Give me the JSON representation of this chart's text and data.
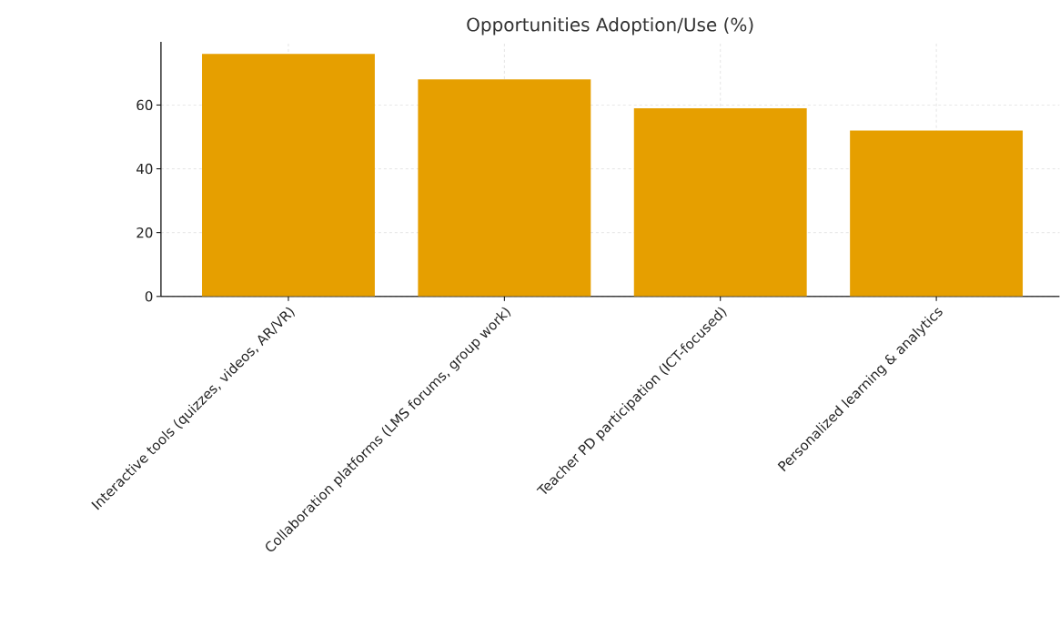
{
  "chart_data": {
    "type": "bar",
    "title": "Opportunities Adoption/Use (%)",
    "categories": [
      "Interactive tools (quizzes, videos, AR/VR)",
      "Collaboration platforms (LMS forums, group work)",
      "Teacher PD participation (ICT-focused)",
      "Personalized learning & analytics"
    ],
    "values": [
      76,
      68,
      59,
      52
    ],
    "color": "#e69f00",
    "ylim": [
      0,
      79.8
    ],
    "yticks": [
      0,
      20,
      40,
      60
    ],
    "grid": true
  }
}
